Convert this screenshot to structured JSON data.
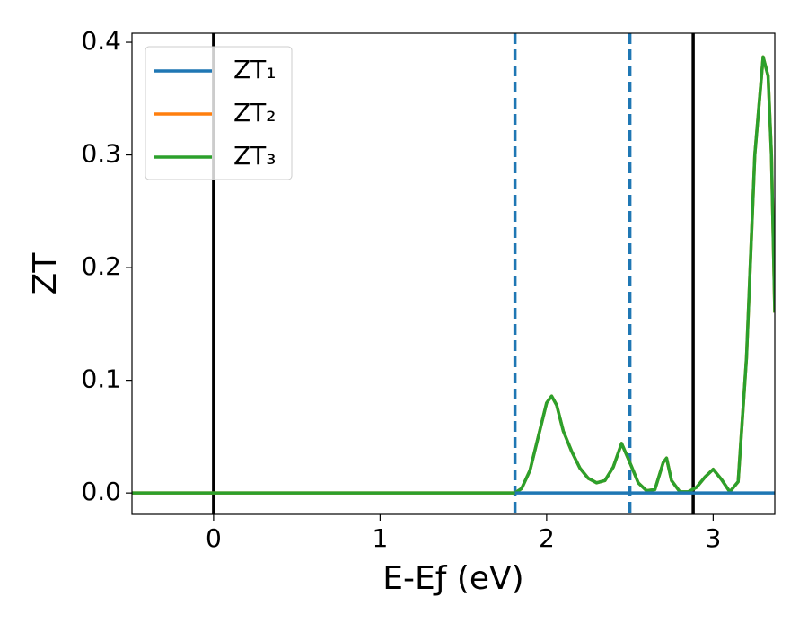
{
  "chart_data": {
    "type": "line",
    "x_label": "E-Eƒ (eV)",
    "y_label": "ZT",
    "x": [
      -0.49,
      0,
      0.5,
      1,
      1.5,
      1.81,
      1.85,
      1.9,
      1.95,
      2.0,
      2.03,
      2.06,
      2.1,
      2.15,
      2.2,
      2.25,
      2.3,
      2.35,
      2.4,
      2.45,
      2.5,
      2.55,
      2.6,
      2.65,
      2.7,
      2.72,
      2.75,
      2.8,
      2.85,
      2.9,
      2.95,
      3.0,
      3.05,
      3.1,
      3.15,
      3.2,
      3.25,
      3.3,
      3.33,
      3.35,
      3.37
    ],
    "series": [
      {
        "name": "ZT₁",
        "color": "#1f77b4",
        "values": [
          null,
          null,
          null,
          null,
          null,
          0,
          0,
          0,
          0,
          0,
          0,
          0,
          0,
          0,
          0,
          0,
          0,
          0,
          0,
          0,
          0,
          0,
          0,
          0,
          0,
          0,
          0,
          0,
          0,
          0,
          0,
          0,
          0,
          0,
          0,
          0,
          0,
          0,
          0,
          0,
          0
        ]
      },
      {
        "name": "ZT₂",
        "color": "#ff7f0e",
        "values": [
          0,
          0,
          0,
          0,
          0,
          0,
          0.004,
          0.02,
          0.05,
          0.08,
          0.086,
          0.078,
          0.055,
          0.037,
          0.022,
          0.013,
          0.009,
          0.011,
          0.023,
          0.044,
          0.027,
          0.009,
          0.002,
          0.003,
          0.027,
          0.031,
          0.011,
          0.001,
          0.001,
          0.005,
          0.014,
          0.021,
          0.012,
          0.001,
          0.01,
          0.12,
          0.3,
          0.387,
          0.37,
          0.3,
          0.16
        ]
      },
      {
        "name": "ZT₃",
        "color": "#2ca02c",
        "values": [
          0,
          0,
          0,
          0,
          0,
          0,
          0.004,
          0.02,
          0.05,
          0.08,
          0.086,
          0.078,
          0.055,
          0.037,
          0.022,
          0.013,
          0.009,
          0.011,
          0.023,
          0.044,
          0.027,
          0.009,
          0.002,
          0.003,
          0.027,
          0.031,
          0.011,
          0.001,
          0.001,
          0.005,
          0.014,
          0.021,
          0.012,
          0.001,
          0.01,
          0.12,
          0.3,
          0.387,
          0.37,
          0.3,
          0.16
        ]
      }
    ],
    "vlines": [
      {
        "x": 0,
        "color": "#000000",
        "style": "solid"
      },
      {
        "x": 2.88,
        "color": "#000000",
        "style": "solid"
      },
      {
        "x": 1.81,
        "color": "#1f77b4",
        "style": "dashed"
      },
      {
        "x": 2.5,
        "color": "#1f77b4",
        "style": "dashed"
      }
    ],
    "xlim": [
      -0.49,
      3.37
    ],
    "xticks": [
      0,
      1,
      2,
      3
    ],
    "ylim": [
      -0.019,
      0.408
    ],
    "yticks": [
      0.0,
      0.1,
      0.2,
      0.3,
      0.4
    ],
    "legend": "upper left"
  }
}
